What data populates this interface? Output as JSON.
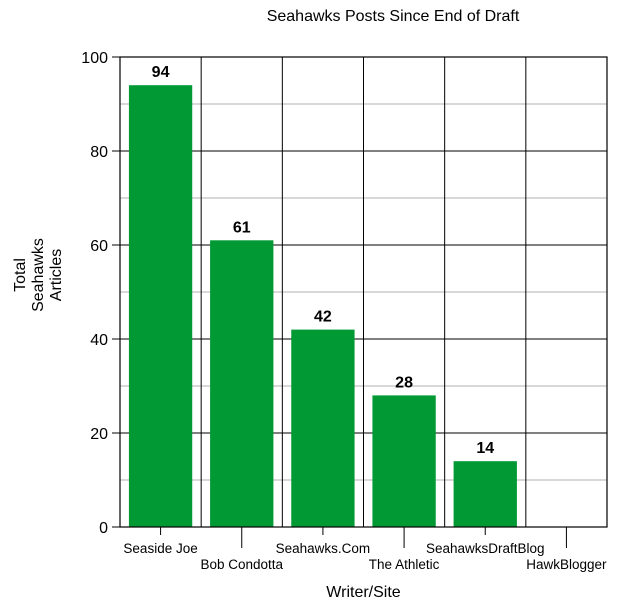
{
  "chart_data": {
    "type": "bar",
    "title": "Seahawks Posts Since End of Draft",
    "xlabel": "Writer/Site",
    "ylabel_lines": [
      "Total",
      "Seahawks",
      "Articles"
    ],
    "categories": [
      "Seaside Joe",
      "Bob Condotta",
      "Seahawks.Com",
      "The Athletic",
      "SeahawksDraftBlog",
      "HawkBlogger"
    ],
    "values": [
      94,
      61,
      42,
      28,
      14,
      0
    ],
    "data_labels": [
      "94",
      "61",
      "42",
      "28",
      "14",
      ""
    ],
    "ylim": [
      0,
      100
    ],
    "yticks": [
      0,
      20,
      40,
      60,
      80,
      100
    ],
    "grid": true,
    "bar_color": "#009933"
  }
}
